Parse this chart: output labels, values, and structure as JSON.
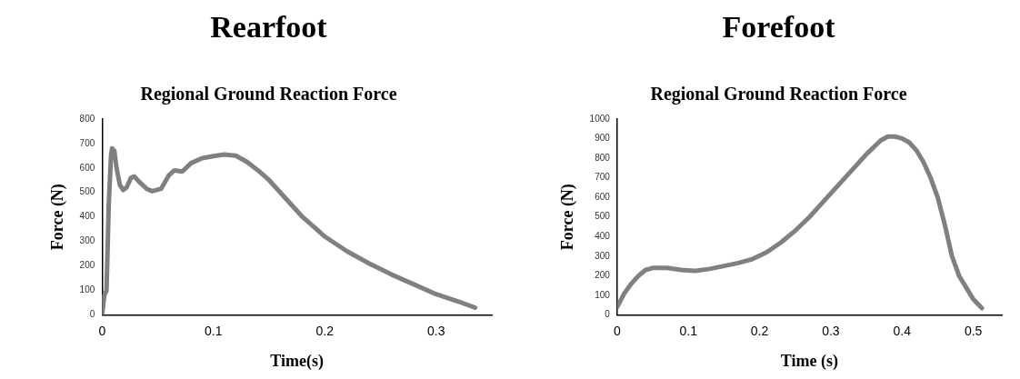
{
  "chart_data": [
    {
      "type": "line",
      "title": "Rearfoot",
      "subtitle": "Regional Ground Reaction Force",
      "xlabel": "Time(s)",
      "ylabel": "Force (N)",
      "xlim": [
        0,
        0.35
      ],
      "xticks": [
        0,
        0.1,
        0.2,
        0.3
      ],
      "ylim": [
        0,
        800
      ],
      "yticks": [
        0,
        100,
        200,
        300,
        400,
        500,
        600,
        700,
        800
      ],
      "grid": false,
      "legend": false,
      "marker": "none",
      "line_style": "solid",
      "series": [
        {
          "color": "#808080",
          "x": [
            0,
            0.002,
            0.004,
            0.006,
            0.008,
            0.009,
            0.011,
            0.013,
            0.016,
            0.019,
            0.022,
            0.026,
            0.029,
            0.033,
            0.04,
            0.045,
            0.053,
            0.06,
            0.065,
            0.072,
            0.08,
            0.09,
            0.1,
            0.11,
            0.12,
            0.13,
            0.14,
            0.15,
            0.16,
            0.17,
            0.18,
            0.19,
            0.2,
            0.22,
            0.24,
            0.26,
            0.28,
            0.3,
            0.32,
            0.335
          ],
          "values": [
            0,
            80,
            100,
            450,
            650,
            680,
            670,
            600,
            530,
            510,
            520,
            560,
            565,
            545,
            515,
            505,
            515,
            570,
            590,
            585,
            620,
            640,
            648,
            655,
            650,
            625,
            590,
            550,
            500,
            450,
            400,
            360,
            320,
            260,
            210,
            165,
            125,
            85,
            55,
            30
          ]
        }
      ]
    },
    {
      "type": "line",
      "title": "Forefoot",
      "subtitle": "Regional Ground Reaction Force",
      "xlabel": "Time (s)",
      "ylabel": "Force (N)",
      "xlim": [
        0,
        0.54
      ],
      "xticks": [
        0,
        0.1,
        0.2,
        0.3,
        0.4,
        0.5
      ],
      "ylim": [
        0,
        1000
      ],
      "yticks": [
        0,
        100,
        200,
        300,
        400,
        500,
        600,
        700,
        800,
        900,
        1000
      ],
      "grid": false,
      "legend": false,
      "marker": "none",
      "line_style": "solid",
      "series": [
        {
          "color": "#808080",
          "x": [
            0,
            0.01,
            0.02,
            0.03,
            0.04,
            0.05,
            0.07,
            0.09,
            0.11,
            0.13,
            0.15,
            0.17,
            0.19,
            0.21,
            0.23,
            0.25,
            0.27,
            0.29,
            0.31,
            0.33,
            0.35,
            0.37,
            0.38,
            0.39,
            0.4,
            0.41,
            0.42,
            0.43,
            0.44,
            0.45,
            0.46,
            0.47,
            0.48,
            0.49,
            0.5,
            0.512
          ],
          "values": [
            40,
            110,
            160,
            200,
            230,
            240,
            240,
            230,
            225,
            235,
            250,
            265,
            285,
            320,
            370,
            430,
            500,
            580,
            660,
            740,
            820,
            890,
            910,
            910,
            900,
            880,
            840,
            780,
            700,
            600,
            460,
            300,
            200,
            140,
            80,
            35
          ]
        }
      ]
    }
  ]
}
